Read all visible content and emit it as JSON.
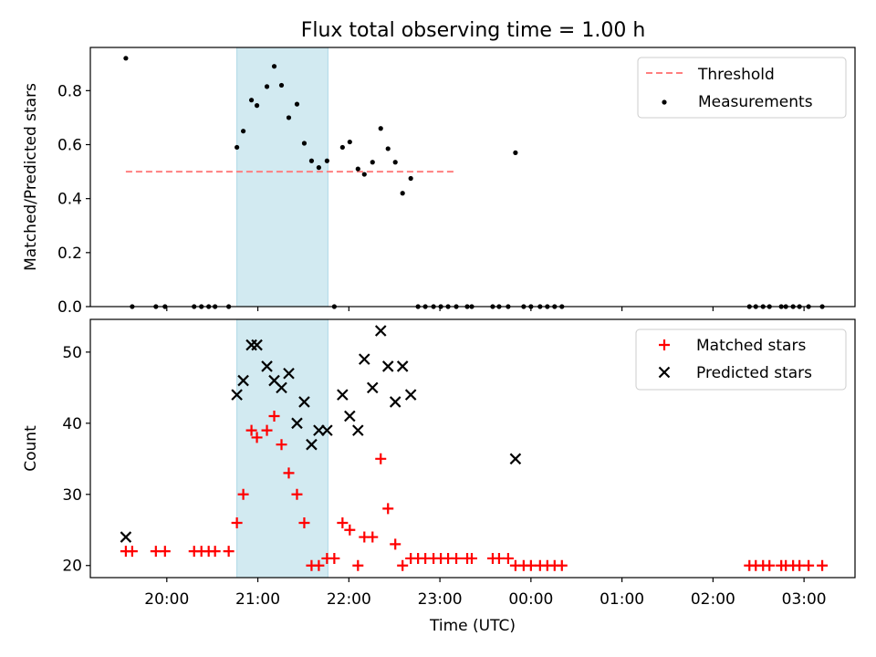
{
  "title": "Flux total observing time = 1.00 h",
  "colors": {
    "threshold": "#ff7f7f",
    "measurement": "#000000",
    "matched": "#ff0000",
    "predicted": "#000000",
    "shade": "#add8e6"
  },
  "chart_data": [
    {
      "type": "scatter",
      "ylabel": "Matched/Predicted stars",
      "ylim": [
        0,
        0.96
      ],
      "yticks": [
        0.0,
        0.2,
        0.4,
        0.6,
        0.8
      ],
      "ytick_labels": [
        "0.0",
        "0.2",
        "0.4",
        "0.6",
        "0.8"
      ],
      "shaded_span_x": [
        20.77,
        21.77
      ],
      "threshold": {
        "name": "Threshold",
        "value": 0.5,
        "x_range": [
          19.55,
          23.16
        ]
      },
      "series": [
        {
          "name": "Measurements",
          "x": [
            19.55,
            19.62,
            19.88,
            19.98,
            20.3,
            20.38,
            20.46,
            20.53,
            20.68,
            20.77,
            20.84,
            20.93,
            20.99,
            21.1,
            21.18,
            21.26,
            21.34,
            21.43,
            21.51,
            21.59,
            21.67,
            21.76,
            21.84,
            21.93,
            22.01,
            22.1,
            22.17,
            22.26,
            22.35,
            22.43,
            22.51,
            22.59,
            22.68,
            22.76,
            22.84,
            22.93,
            23.01,
            23.09,
            23.18,
            23.3,
            23.35,
            23.58,
            23.65,
            23.75,
            23.83,
            23.92,
            24.0,
            24.1,
            24.18,
            24.26,
            24.34,
            26.4,
            26.47,
            26.55,
            26.62,
            26.75,
            26.8,
            26.88,
            26.95,
            27.05,
            27.2
          ],
          "y": [
            0.92,
            0.0,
            0.0,
            0.0,
            0.0,
            0.0,
            0.0,
            0.0,
            0.0,
            0.59,
            0.65,
            0.765,
            0.745,
            0.815,
            0.89,
            0.82,
            0.7,
            0.75,
            0.605,
            0.54,
            0.515,
            0.54,
            0.0,
            0.59,
            0.61,
            0.51,
            0.49,
            0.535,
            0.66,
            0.585,
            0.535,
            0.42,
            0.475,
            0.0,
            0.0,
            0.0,
            0.0,
            0.0,
            0.0,
            0.0,
            0.0,
            0.0,
            0.0,
            0.0,
            0.57,
            0.0,
            0.0,
            0.0,
            0.0,
            0.0,
            0.0,
            0.0,
            0.0,
            0.0,
            0.0,
            0.0,
            0.0,
            0.0,
            0.0,
            0.0,
            0.0
          ]
        }
      ],
      "legend": [
        "Threshold",
        "Measurements"
      ],
      "legend_position": "top-right"
    },
    {
      "type": "scatter",
      "xlabel": "Time (UTC)",
      "ylabel": "Count",
      "xlim": [
        19.16,
        27.56
      ],
      "ylim": [
        18.3,
        54.6
      ],
      "xticks": [
        20,
        21,
        22,
        23,
        24,
        25,
        26,
        27
      ],
      "xtick_labels": [
        "20:00",
        "21:00",
        "22:00",
        "23:00",
        "00:00",
        "01:00",
        "02:00",
        "03:00"
      ],
      "yticks": [
        20,
        30,
        40,
        50
      ],
      "ytick_labels": [
        "20",
        "30",
        "40",
        "50"
      ],
      "shaded_span_x": [
        20.77,
        21.77
      ],
      "series": [
        {
          "name": "Matched stars",
          "marker": "plus",
          "x": [
            19.55,
            19.62,
            19.88,
            19.98,
            20.3,
            20.38,
            20.46,
            20.53,
            20.68,
            20.77,
            20.84,
            20.93,
            20.99,
            21.1,
            21.18,
            21.26,
            21.34,
            21.43,
            21.51,
            21.59,
            21.67,
            21.76,
            21.84,
            21.93,
            22.01,
            22.1,
            22.17,
            22.26,
            22.35,
            22.43,
            22.51,
            22.59,
            22.68,
            22.76,
            22.84,
            22.93,
            23.01,
            23.09,
            23.18,
            23.3,
            23.35,
            23.58,
            23.65,
            23.75,
            23.83,
            23.92,
            24.0,
            24.1,
            24.18,
            24.26,
            24.34,
            26.4,
            26.47,
            26.55,
            26.62,
            26.75,
            26.8,
            26.88,
            26.95,
            27.05,
            27.2
          ],
          "y": [
            22,
            22,
            22,
            22,
            22,
            22,
            22,
            22,
            22,
            26,
            30,
            39,
            38,
            39,
            41,
            37,
            33,
            30,
            26,
            20,
            20,
            21,
            21,
            26,
            25,
            20,
            24,
            24,
            35,
            28,
            23,
            20,
            21,
            21,
            21,
            21,
            21,
            21,
            21,
            21,
            21,
            21,
            21,
            21,
            20,
            20,
            20,
            20,
            20,
            20,
            20,
            20,
            20,
            20,
            20,
            20,
            20,
            20,
            20,
            20,
            20
          ]
        },
        {
          "name": "Predicted stars",
          "marker": "x",
          "x": [
            19.55,
            20.77,
            20.84,
            20.93,
            20.99,
            21.1,
            21.18,
            21.26,
            21.34,
            21.43,
            21.51,
            21.59,
            21.67,
            21.76,
            21.93,
            22.01,
            22.1,
            22.17,
            22.26,
            22.35,
            22.43,
            22.51,
            22.59,
            22.68,
            23.83
          ],
          "y": [
            24,
            44,
            46,
            51,
            51,
            48,
            46,
            45,
            47,
            40,
            43,
            37,
            39,
            39,
            44,
            41,
            39,
            49,
            45,
            53,
            48,
            43,
            48,
            44,
            35
          ]
        }
      ],
      "legend": [
        "Matched stars",
        "Predicted stars"
      ],
      "legend_position": "top-right"
    }
  ]
}
